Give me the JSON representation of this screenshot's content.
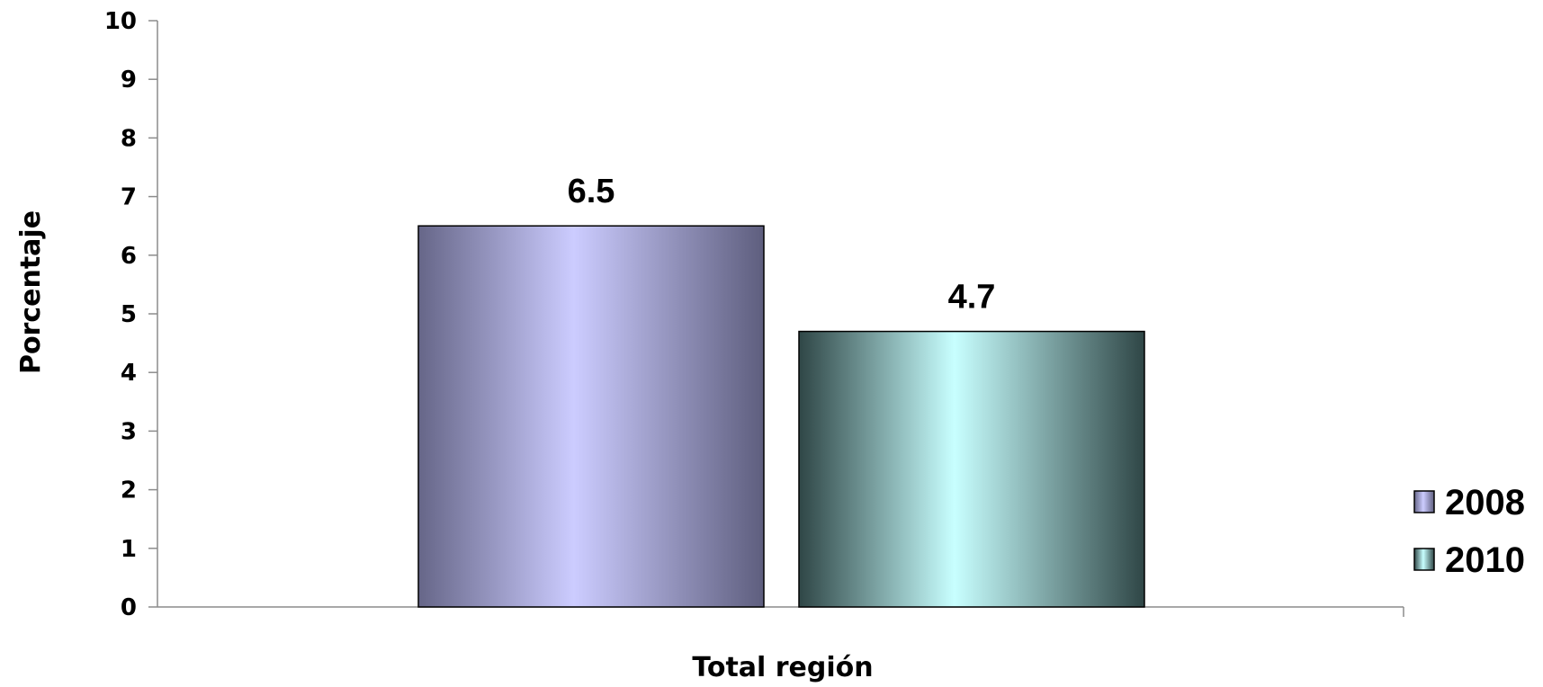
{
  "chart_data": {
    "type": "bar",
    "categories": [
      "Total región"
    ],
    "series": [
      {
        "name": "2008",
        "values": [
          6.5
        ]
      },
      {
        "name": "2010",
        "values": [
          4.7
        ]
      }
    ],
    "xlabel": "Total región",
    "ylabel": "Porcentaje",
    "ylim": [
      0,
      10
    ],
    "yticks": [
      "0",
      "1",
      "2",
      "3",
      "4",
      "5",
      "6",
      "7",
      "8",
      "9",
      "10"
    ],
    "data_labels": [
      "6.5",
      "4.7"
    ],
    "grid": false,
    "legend_position": "right",
    "colors": {
      "2008": {
        "light": "#ccccff",
        "dark": "#5e5e7e"
      },
      "2010": {
        "light": "#c8ffff",
        "dark": "#2f4646"
      }
    }
  }
}
